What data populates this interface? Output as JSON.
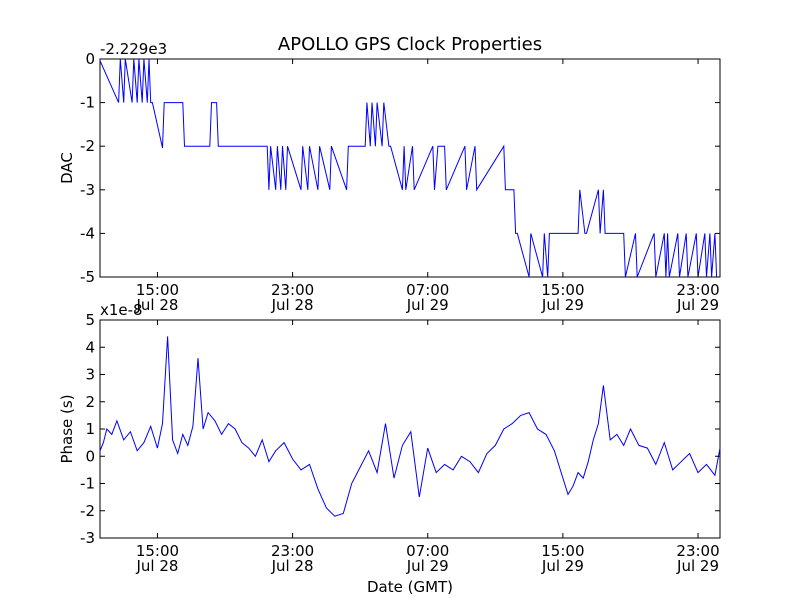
{
  "chart_data": [
    {
      "type": "line",
      "title": "APOLLO GPS Clock Properties",
      "ylabel": "DAC",
      "xlabel": "",
      "offset_label": "-2.229e3",
      "x_range_hours": [
        11.6,
        48.3
      ],
      "ylim": [
        -5,
        0
      ],
      "yticks": [
        {
          "value": 0,
          "label": "0"
        },
        {
          "value": -1,
          "label": "-1"
        },
        {
          "value": -2,
          "label": "-2"
        },
        {
          "value": -3,
          "label": "-3"
        },
        {
          "value": -4,
          "label": "-4"
        },
        {
          "value": -5,
          "label": "-5"
        }
      ],
      "xticks": [
        {
          "hours": 15,
          "time": "15:00",
          "date": "Jul 28"
        },
        {
          "hours": 23,
          "time": "23:00",
          "date": "Jul 28"
        },
        {
          "hours": 31,
          "time": "07:00",
          "date": "Jul 29"
        },
        {
          "hours": 39,
          "time": "15:00",
          "date": "Jul 29"
        },
        {
          "hours": 47,
          "time": "23:00",
          "date": "Jul 29"
        }
      ],
      "grid": false,
      "line_color": "#0000ff",
      "series": [
        {
          "x_hours": [
            11.6,
            12.7,
            12.8,
            13.0,
            13.1,
            13.5,
            13.6,
            13.8,
            13.9,
            14.1,
            14.2,
            14.4,
            14.5,
            14.6,
            14.7,
            15.3,
            15.4,
            16.5,
            16.6,
            18.1,
            18.2,
            18.5,
            18.6,
            21.5,
            21.6,
            21.7,
            22.0,
            22.1,
            22.3,
            22.4,
            22.6,
            22.7,
            23.5,
            23.6,
            23.9,
            24.0,
            24.5,
            24.6,
            25.2,
            25.3,
            26.2,
            26.3,
            27.3,
            27.4,
            27.6,
            27.7,
            27.9,
            28.0,
            28.3,
            28.4,
            28.7,
            28.8,
            29.5,
            29.6,
            29.7,
            30.1,
            30.2,
            31.3,
            31.4,
            31.6,
            32.0,
            32.1,
            33.2,
            33.3,
            33.8,
            33.9,
            35.5,
            35.6,
            36.1,
            36.2,
            36.3,
            37.0,
            37.1,
            37.8,
            37.9,
            38.1,
            38.2,
            39.9,
            40.0,
            40.3,
            40.4,
            41.1,
            41.2,
            41.4,
            41.5,
            42.6,
            42.7,
            43.3,
            43.4,
            44.4,
            44.5,
            45.0,
            45.1,
            45.2,
            45.3,
            45.8,
            45.9,
            46.3,
            46.4,
            46.9,
            47.0,
            47.4,
            47.5,
            47.7,
            47.8,
            48.0,
            48.1,
            48.3
          ],
          "y": [
            -0.04,
            -1,
            0,
            -1,
            0,
            -1,
            0,
            -1,
            0,
            -1,
            0,
            -1,
            0,
            -1,
            -1,
            -2.04,
            -1,
            -1,
            -2,
            -2,
            -1,
            -1,
            -2,
            -2,
            -3,
            -2,
            -3,
            -2,
            -3,
            -2,
            -3,
            -2,
            -3,
            -2,
            -3,
            -2,
            -3,
            -2,
            -3,
            -2,
            -3,
            -2,
            -2,
            -1,
            -2,
            -1,
            -2,
            -1,
            -2,
            -1,
            -2,
            -2,
            -3,
            -2,
            -3,
            -2,
            -3,
            -2,
            -3,
            -2,
            -2,
            -3,
            -2,
            -3,
            -2,
            -3,
            -2,
            -3,
            -3,
            -4,
            -4,
            -5,
            -4,
            -5,
            -4,
            -5,
            -4,
            -4,
            -3,
            -4,
            -4,
            -3,
            -4,
            -3,
            -4,
            -4,
            -5,
            -4,
            -5,
            -4,
            -5,
            -4,
            -5,
            -4,
            -5,
            -4,
            -5,
            -4,
            -5,
            -4,
            -5,
            -4,
            -5,
            -4,
            -5,
            -4,
            -5,
            -5
          ]
        }
      ]
    },
    {
      "type": "line",
      "title": "",
      "ylabel": "Phase (s)",
      "xlabel": "Date (GMT)",
      "offset_label": "x1e-8",
      "x_range_hours": [
        11.6,
        48.3
      ],
      "ylim": [
        -3,
        5
      ],
      "yticks": [
        {
          "value": 5,
          "label": "5"
        },
        {
          "value": 4,
          "label": "4"
        },
        {
          "value": 3,
          "label": "3"
        },
        {
          "value": 2,
          "label": "2"
        },
        {
          "value": 1,
          "label": "1"
        },
        {
          "value": 0,
          "label": "0"
        },
        {
          "value": -1,
          "label": "-1"
        },
        {
          "value": -2,
          "label": "-2"
        },
        {
          "value": -3,
          "label": "-3"
        }
      ],
      "xticks": [
        {
          "hours": 15,
          "time": "15:00",
          "date": "Jul 28"
        },
        {
          "hours": 23,
          "time": "23:00",
          "date": "Jul 28"
        },
        {
          "hours": 31,
          "time": "07:00",
          "date": "Jul 29"
        },
        {
          "hours": 39,
          "time": "15:00",
          "date": "Jul 29"
        },
        {
          "hours": 47,
          "time": "23:00",
          "date": "Jul 29"
        }
      ],
      "grid": false,
      "line_color": "#0000ff",
      "series": [
        {
          "x_hours": [
            11.6,
            11.8,
            12.0,
            12.3,
            12.6,
            13.0,
            13.4,
            13.8,
            14.2,
            14.6,
            15.0,
            15.3,
            15.6,
            15.9,
            16.2,
            16.5,
            16.8,
            17.1,
            17.4,
            17.7,
            18.0,
            18.4,
            18.8,
            19.2,
            19.6,
            20.0,
            20.4,
            20.8,
            21.2,
            21.6,
            22.0,
            22.5,
            23.0,
            23.5,
            24.0,
            24.5,
            25.0,
            25.5,
            26.0,
            26.5,
            27.0,
            27.5,
            28.0,
            28.5,
            29.0,
            29.5,
            30.0,
            30.5,
            31.0,
            31.5,
            32.0,
            32.5,
            33.0,
            33.5,
            34.0,
            34.5,
            35.0,
            35.5,
            36.0,
            36.5,
            37.0,
            37.5,
            38.0,
            38.5,
            39.0,
            39.3,
            39.6,
            39.9,
            40.2,
            40.5,
            40.8,
            41.1,
            41.4,
            41.8,
            42.2,
            42.6,
            43.0,
            43.5,
            44.0,
            44.5,
            45.0,
            45.5,
            46.0,
            46.5,
            47.0,
            47.5,
            48.0,
            48.3
          ],
          "y": [
            0.2,
            0.5,
            1.0,
            0.8,
            1.3,
            0.6,
            0.9,
            0.2,
            0.5,
            1.1,
            0.3,
            1.2,
            4.4,
            0.6,
            0.1,
            0.8,
            0.4,
            1.1,
            3.6,
            1.0,
            1.6,
            1.3,
            0.8,
            1.2,
            1.0,
            0.5,
            0.3,
            0.0,
            0.6,
            -0.2,
            0.2,
            0.5,
            -0.1,
            -0.5,
            -0.3,
            -1.2,
            -1.9,
            -2.2,
            -2.1,
            -1.0,
            -0.4,
            0.2,
            -0.6,
            1.2,
            -0.8,
            0.4,
            0.9,
            -1.5,
            0.3,
            -0.6,
            -0.3,
            -0.5,
            0.0,
            -0.2,
            -0.6,
            0.1,
            0.4,
            1.0,
            1.2,
            1.5,
            1.6,
            1.0,
            0.8,
            0.2,
            -0.8,
            -1.4,
            -1.1,
            -0.6,
            -0.8,
            -0.2,
            0.6,
            1.2,
            2.6,
            0.6,
            0.8,
            0.4,
            1.0,
            0.4,
            0.3,
            -0.3,
            0.5,
            -0.5,
            -0.2,
            0.1,
            -0.6,
            -0.3,
            -0.7,
            0.3
          ]
        }
      ]
    }
  ]
}
